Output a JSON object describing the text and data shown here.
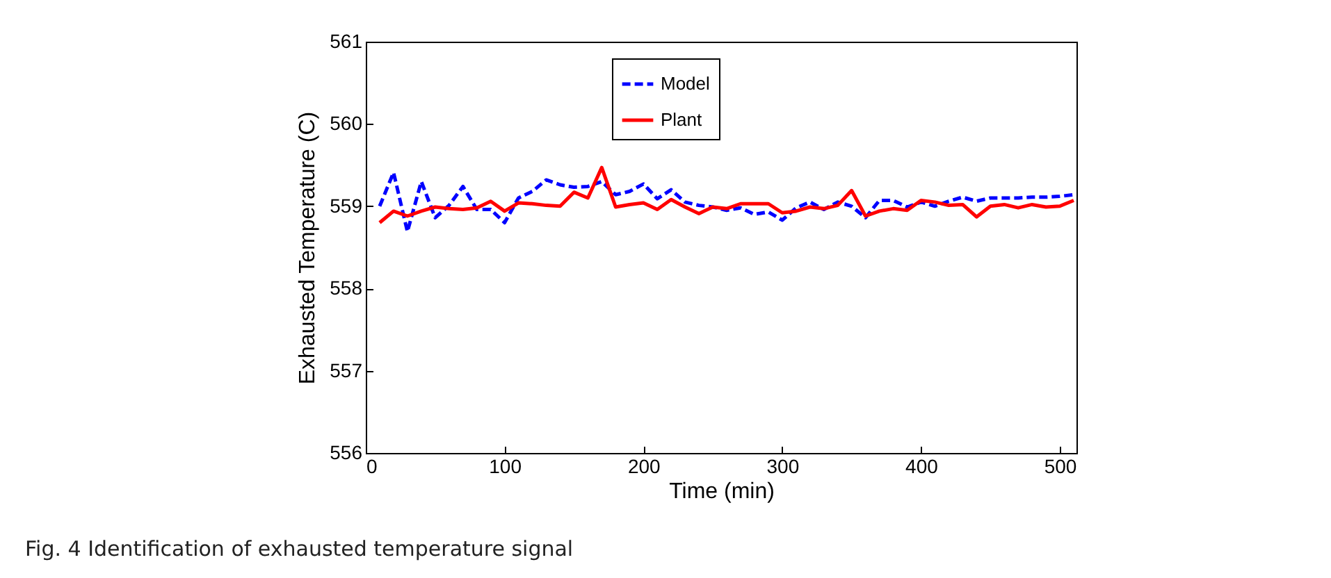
{
  "chart_data": {
    "type": "line",
    "xlabel": "Time (min)",
    "ylabel": "Exhausted Temperature (C)",
    "annotations": [
      "Fig. 4 Identification of exhausted temperature signal"
    ],
    "x": [
      10,
      20,
      30,
      40,
      50,
      60,
      70,
      80,
      90,
      100,
      110,
      120,
      130,
      140,
      150,
      160,
      170,
      180,
      190,
      200,
      210,
      220,
      230,
      240,
      250,
      260,
      270,
      280,
      290,
      300,
      310,
      320,
      330,
      340,
      350,
      360,
      370,
      380,
      390,
      400,
      410,
      420,
      430,
      440,
      450,
      460,
      470,
      480,
      490,
      500,
      510
    ],
    "series": [
      {
        "name": "Model",
        "color": "#0000ff",
        "line_style": "dashed",
        "values": [
          559,
          559.41,
          558.69,
          559.3,
          558.86,
          559.01,
          559.24,
          558.96,
          558.96,
          558.8,
          559.1,
          559.18,
          559.32,
          559.26,
          559.23,
          559.24,
          559.3,
          559.14,
          559.18,
          559.27,
          559.09,
          559.2,
          559.05,
          559.01,
          558.99,
          558.95,
          558.98,
          558.9,
          558.93,
          558.83,
          558.98,
          559.05,
          558.96,
          559.05,
          559,
          558.86,
          559.07,
          559.07,
          558.99,
          559.05,
          559,
          559.06,
          559.11,
          559.06,
          559.1,
          559.1,
          559.1,
          559.11,
          559.11,
          559.12,
          559.14
        ]
      },
      {
        "name": "Plant",
        "color": "#ff0000",
        "line_style": "solid",
        "values": [
          558.8,
          558.94,
          558.88,
          558.94,
          558.99,
          558.97,
          558.96,
          558.98,
          559.06,
          558.94,
          559.04,
          559.03,
          559.01,
          559,
          559.17,
          559.1,
          559.47,
          558.99,
          559.02,
          559.04,
          558.96,
          559.08,
          558.99,
          558.91,
          558.99,
          558.97,
          559.03,
          559.03,
          559.03,
          558.92,
          558.94,
          558.99,
          558.97,
          559.01,
          559.19,
          558.88,
          558.94,
          558.97,
          558.95,
          559.07,
          559.05,
          559.01,
          559.02,
          558.87,
          559,
          559.02,
          558.98,
          559.02,
          558.99,
          559,
          559.07
        ]
      }
    ],
    "xlim": [
      0,
      512
    ],
    "xticks": [
      0,
      100,
      200,
      300,
      400,
      500
    ],
    "ylim": [
      556,
      561
    ],
    "yticks": [
      556,
      557,
      558,
      559,
      560,
      561
    ],
    "grid": false,
    "legend": "top",
    "marker": "none"
  }
}
